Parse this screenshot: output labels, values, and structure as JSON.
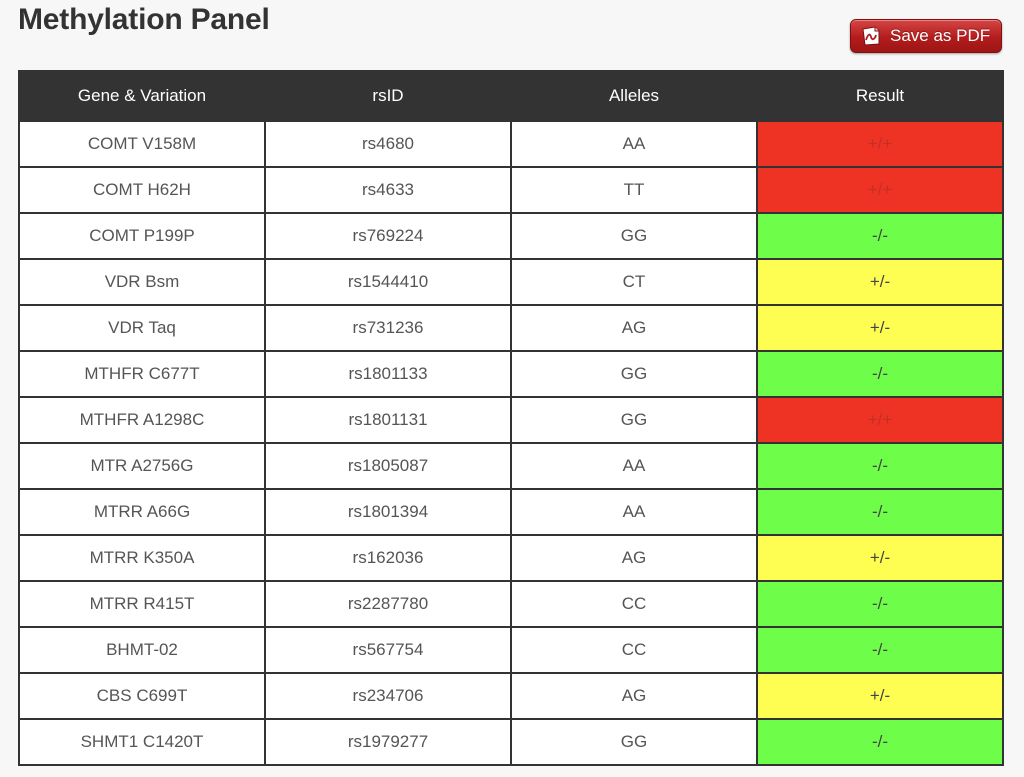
{
  "page": {
    "title": "Methylation Panel"
  },
  "toolbar": {
    "save_pdf_label": "Save as PDF",
    "save_pdf_icon": "pdf-document-icon"
  },
  "colors": {
    "red": "#ee3324",
    "green": "#6efd49",
    "yellow": "#fdfd52"
  },
  "table": {
    "headers": [
      "Gene & Variation",
      "rsID",
      "Alleles",
      "Result"
    ],
    "rows": [
      {
        "gene": "COMT V158M",
        "rsid": "rs4680",
        "alleles": "AA",
        "result": "+/+",
        "status": "red"
      },
      {
        "gene": "COMT H62H",
        "rsid": "rs4633",
        "alleles": "TT",
        "result": "+/+",
        "status": "red"
      },
      {
        "gene": "COMT P199P",
        "rsid": "rs769224",
        "alleles": "GG",
        "result": "-/-",
        "status": "green"
      },
      {
        "gene": "VDR Bsm",
        "rsid": "rs1544410",
        "alleles": "CT",
        "result": "+/-",
        "status": "yellow"
      },
      {
        "gene": "VDR Taq",
        "rsid": "rs731236",
        "alleles": "AG",
        "result": "+/-",
        "status": "yellow"
      },
      {
        "gene": "MTHFR C677T",
        "rsid": "rs1801133",
        "alleles": "GG",
        "result": "-/-",
        "status": "green"
      },
      {
        "gene": "MTHFR A1298C",
        "rsid": "rs1801131",
        "alleles": "GG",
        "result": "+/+",
        "status": "red"
      },
      {
        "gene": "MTR A2756G",
        "rsid": "rs1805087",
        "alleles": "AA",
        "result": "-/-",
        "status": "green"
      },
      {
        "gene": "MTRR A66G",
        "rsid": "rs1801394",
        "alleles": "AA",
        "result": "-/-",
        "status": "green"
      },
      {
        "gene": "MTRR K350A",
        "rsid": "rs162036",
        "alleles": "AG",
        "result": "+/-",
        "status": "yellow"
      },
      {
        "gene": "MTRR R415T",
        "rsid": "rs2287780",
        "alleles": "CC",
        "result": "-/-",
        "status": "green"
      },
      {
        "gene": "BHMT-02",
        "rsid": "rs567754",
        "alleles": "CC",
        "result": "-/-",
        "status": "green"
      },
      {
        "gene": "CBS C699T",
        "rsid": "rs234706",
        "alleles": "AG",
        "result": "+/-",
        "status": "yellow"
      },
      {
        "gene": "SHMT1 C1420T",
        "rsid": "rs1979277",
        "alleles": "GG",
        "result": "-/-",
        "status": "green"
      }
    ]
  }
}
